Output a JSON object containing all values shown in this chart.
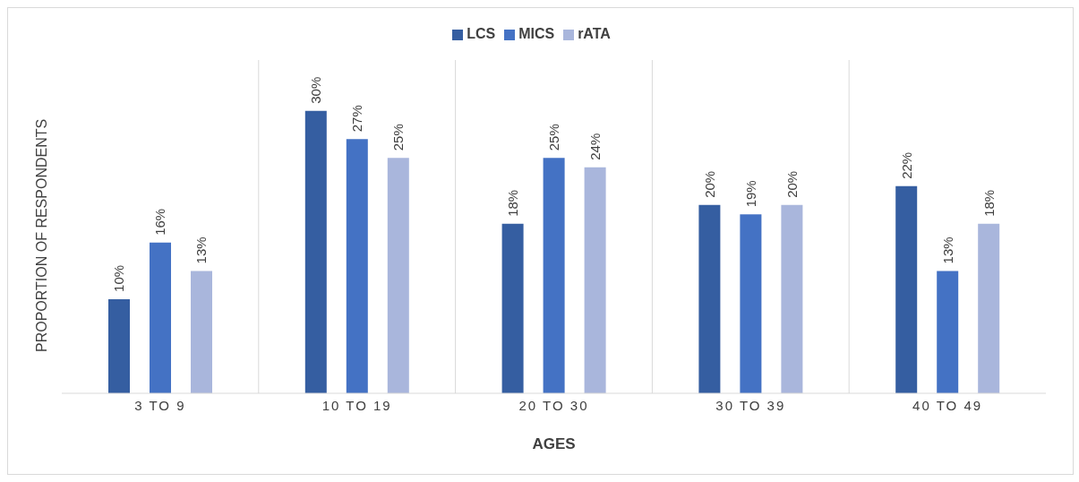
{
  "chart_data": {
    "type": "bar",
    "xlabel": "AGES",
    "ylabel": "PROPORTION OF RESPONDENTS",
    "categories": [
      "3 TO 9",
      "10 TO 19",
      "20 TO 30",
      "30 TO 39",
      "40 TO 49"
    ],
    "series": [
      {
        "name": "LCS",
        "color": "#355ea1",
        "values": [
          10,
          30,
          18,
          20,
          22
        ],
        "value_labels": [
          "10%",
          "30%",
          "18%",
          "20%",
          "22%"
        ]
      },
      {
        "name": "MICS",
        "color": "#4472c4",
        "values": [
          16,
          27,
          25,
          19,
          13
        ],
        "value_labels": [
          "16%",
          "27%",
          "25%",
          "19%",
          "13%"
        ]
      },
      {
        "name": "rATA",
        "color": "#a9b6dc",
        "values": [
          13,
          25,
          24,
          20,
          18
        ],
        "value_labels": [
          "13%",
          "25%",
          "24%",
          "20%",
          "18%"
        ]
      }
    ],
    "grid": "x",
    "legend": "top"
  }
}
